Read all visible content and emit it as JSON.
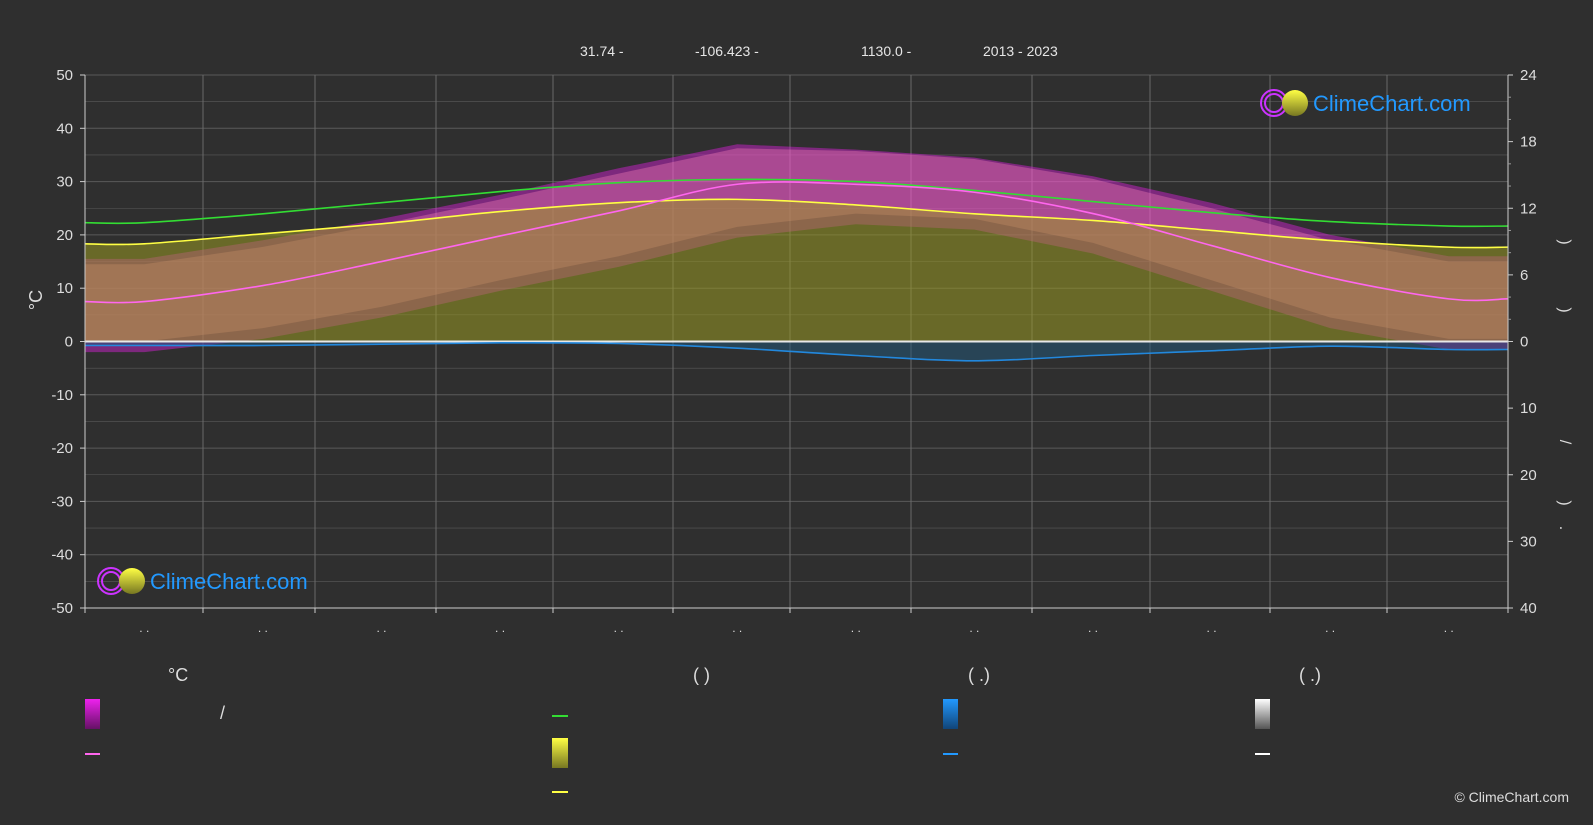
{
  "header": {
    "lat": "31.74 -",
    "lon": "-106.423 -",
    "elev": "1130.0 -",
    "years": "2013 - 2023"
  },
  "logo_text": "ClimeChart.com",
  "copyright": "© ClimeChart.com",
  "colors": {
    "background": "#2f2f2f",
    "grid": "#5a5a5a",
    "daylight": "#33dd33",
    "sunshine": "#ffff44",
    "temp_mean": "#ff66ee",
    "temp_band": "#dd22dd",
    "precip": "#2288dd",
    "snow": "#cccccc",
    "logo": "#2299ff"
  },
  "legend": {
    "col1_head": "°C",
    "col2_head": "(          )",
    "col3_head": "(   .)",
    "col4_head": "(   .)",
    "slash": "/"
  },
  "chart_data": {
    "type": "area",
    "title": "",
    "ylabel_left": "°C",
    "ylim_left": [
      -50,
      50
    ],
    "yticks_left": [
      50,
      40,
      30,
      20,
      10,
      0,
      -10,
      -20,
      -30,
      -40,
      -50
    ],
    "ylim_right_top": [
      0,
      24
    ],
    "yticks_right_top": [
      24,
      18,
      12,
      6,
      0
    ],
    "yticks_right_bottom": [
      10,
      20,
      30,
      40
    ],
    "right_axis_glyphs": [
      ")",
      ")",
      "/",
      ")",
      "."
    ],
    "x_tick_label": ". .",
    "months": 12,
    "series": [
      {
        "key": "daylight",
        "values": [
          10.7,
          11.5,
          12.5,
          13.5,
          14.3,
          14.6,
          14.4,
          13.6,
          12.6,
          11.6,
          10.8,
          10.4
        ]
      },
      {
        "key": "sunshine",
        "values": [
          8.8,
          9.7,
          10.6,
          11.7,
          12.5,
          12.8,
          12.3,
          11.5,
          10.9,
          10.0,
          9.1,
          8.5
        ]
      },
      {
        "key": "temp_mean",
        "values": [
          7.5,
          10.5,
          15.0,
          19.8,
          24.5,
          29.5,
          29.5,
          28.0,
          24.0,
          18.0,
          12.0,
          8.0
        ]
      },
      {
        "key": "temp_max_band",
        "values": [
          15.5,
          19.0,
          23.0,
          27.5,
          32.5,
          37.0,
          36.0,
          34.5,
          31.0,
          26.0,
          20.0,
          16.0
        ]
      },
      {
        "key": "temp_min_band",
        "values": [
          -2.0,
          0.5,
          4.5,
          9.5,
          14.0,
          19.5,
          22.0,
          21.0,
          16.5,
          9.5,
          2.5,
          -1.5
        ]
      },
      {
        "key": "precip",
        "values": [
          0.6,
          0.6,
          0.4,
          0.2,
          0.3,
          1.0,
          2.1,
          2.9,
          2.1,
          1.4,
          0.7,
          1.2
        ]
      }
    ]
  }
}
